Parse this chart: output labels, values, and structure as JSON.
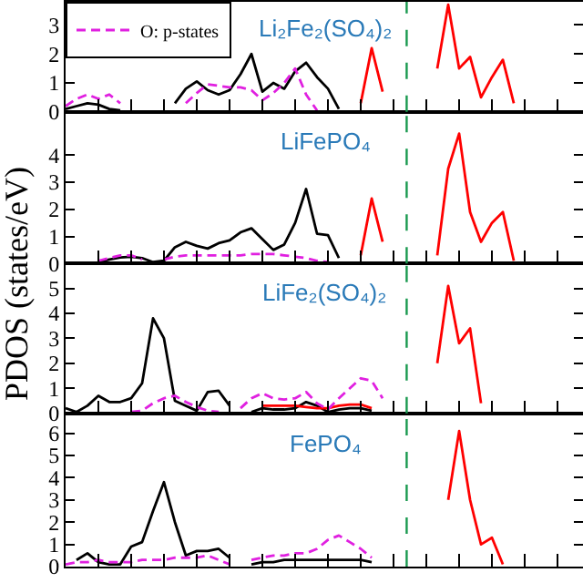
{
  "chart_data": [
    {
      "type": "line",
      "title": "Li₂Fe₂(SO₄)₂",
      "categories": [
        null,
        null,
        null,
        null,
        null,
        null,
        null,
        null,
        null,
        null,
        null,
        null,
        null,
        null,
        null,
        null,
        null,
        null,
        null,
        null,
        null,
        null,
        null,
        null,
        null,
        null,
        null,
        null,
        null,
        null,
        null,
        null,
        null,
        null,
        null,
        null,
        null,
        null,
        null,
        null,
        null,
        null,
        null,
        null,
        null,
        null,
        null,
        null
      ],
      "ylim": [
        0,
        3.8
      ],
      "yticks": [
        0,
        1,
        2,
        3
      ],
      "tick_labels": "y",
      "grid": false,
      "legend": "top left",
      "marker": "none",
      "series": [
        {
          "color": "#000000",
          "values": [
            0.1,
            0.2,
            0.3,
            0.25,
            0.1,
            0.05,
            null,
            null,
            null,
            null,
            0.3,
            0.8,
            1.05,
            0.75,
            0.6,
            0.75,
            1.3,
            2.0,
            0.7,
            1.0,
            0.8,
            1.4,
            1.7,
            1.2,
            0.8,
            0.1,
            null,
            null,
            null,
            null,
            null,
            null,
            null,
            null,
            null,
            null,
            null,
            null,
            null,
            null,
            null,
            null,
            null,
            null,
            null,
            null,
            null,
            null
          ]
        },
        {
          "color": "#ff0000",
          "values": [
            null,
            null,
            null,
            null,
            null,
            null,
            null,
            null,
            null,
            null,
            null,
            null,
            null,
            null,
            null,
            null,
            null,
            null,
            null,
            null,
            null,
            null,
            null,
            null,
            null,
            null,
            null,
            0.3,
            2.2,
            0.7,
            null,
            null,
            null,
            null,
            1.5,
            3.7,
            1.5,
            1.9,
            0.5,
            1.2,
            1.8,
            0.3,
            null,
            null,
            null,
            null,
            null,
            null
          ]
        },
        {
          "name": "O: p-states",
          "color": "#e020e0",
          "line_style": "dashed",
          "values": [
            0.2,
            0.45,
            0.6,
            0.45,
            0.6,
            0.3,
            null,
            null,
            null,
            null,
            null,
            0.3,
            0.65,
            0.95,
            0.9,
            0.85,
            0.85,
            0.75,
            0.4,
            0.65,
            1.0,
            1.5,
            0.6,
            0.05,
            null,
            null,
            null,
            null,
            null,
            null,
            null,
            null,
            null,
            null,
            null,
            null,
            null,
            null,
            null,
            null,
            null,
            null,
            null,
            null,
            null,
            null,
            null,
            null
          ]
        }
      ]
    },
    {
      "type": "line",
      "title": "LiFePO₄",
      "ylabel": "PDOS (states/eV)",
      "categories": [
        null,
        null,
        null,
        null,
        null,
        null,
        null,
        null,
        null,
        null,
        null,
        null,
        null,
        null,
        null,
        null,
        null,
        null,
        null,
        null,
        null,
        null,
        null,
        null,
        null,
        null,
        null,
        null,
        null,
        null,
        null,
        null,
        null,
        null,
        null,
        null,
        null,
        null,
        null,
        null,
        null,
        null,
        null,
        null,
        null,
        null,
        null,
        null
      ],
      "ylim": [
        0,
        5.6
      ],
      "yticks": [
        0,
        1,
        2,
        3,
        4
      ],
      "tick_labels": "y",
      "grid": false,
      "marker": "none",
      "series": [
        {
          "color": "#000000",
          "values": [
            null,
            null,
            null,
            0.05,
            0.15,
            0.22,
            0.25,
            0.2,
            0.05,
            0.1,
            0.6,
            0.8,
            0.65,
            0.55,
            0.75,
            0.85,
            1.15,
            1.3,
            0.9,
            0.5,
            0.7,
            1.5,
            2.75,
            1.1,
            1.05,
            0.2,
            null,
            null,
            null,
            null,
            null,
            null,
            null,
            null,
            null,
            null,
            null,
            null,
            null,
            null,
            null,
            null,
            null,
            null,
            null,
            null,
            null,
            null
          ]
        },
        {
          "color": "#ff0000",
          "values": [
            null,
            null,
            null,
            null,
            null,
            null,
            null,
            null,
            null,
            null,
            null,
            null,
            null,
            null,
            null,
            null,
            null,
            null,
            null,
            null,
            null,
            null,
            null,
            null,
            null,
            null,
            null,
            0.3,
            2.4,
            0.8,
            null,
            null,
            null,
            null,
            0.3,
            3.5,
            4.8,
            1.9,
            0.8,
            1.5,
            1.9,
            0.1,
            null,
            null,
            null,
            null,
            null,
            null
          ]
        },
        {
          "color": "#e020e0",
          "line_style": "dashed",
          "values": [
            null,
            null,
            null,
            0.1,
            0.2,
            0.3,
            0.3,
            0.15,
            null,
            0.15,
            0.25,
            0.3,
            0.3,
            0.3,
            0.3,
            0.3,
            0.3,
            0.35,
            0.35,
            0.35,
            0.3,
            0.25,
            0.2,
            0.1,
            0.05,
            null,
            null,
            null,
            null,
            null,
            null,
            null,
            null,
            null,
            null,
            null,
            null,
            null,
            null,
            null,
            null,
            null,
            null,
            null,
            null,
            null,
            null,
            null
          ]
        }
      ]
    },
    {
      "type": "line",
      "title": "LiFe₂(SO₄)₂",
      "categories": [
        null,
        null,
        null,
        null,
        null,
        null,
        null,
        null,
        null,
        null,
        null,
        null,
        null,
        null,
        null,
        null,
        null,
        null,
        null,
        null,
        null,
        null,
        null,
        null,
        null,
        null,
        null,
        null,
        null,
        null,
        null,
        null,
        null,
        null,
        null,
        null,
        null,
        null,
        null,
        null,
        null,
        null,
        null,
        null,
        null,
        null,
        null,
        null
      ],
      "ylim": [
        0,
        6
      ],
      "yticks": [
        0,
        1,
        2,
        3,
        4,
        5
      ],
      "tick_labels": "y",
      "grid": false,
      "marker": "none",
      "series": [
        {
          "color": "#000000",
          "values": [
            0.2,
            0.05,
            0.3,
            0.7,
            0.45,
            0.45,
            0.6,
            1.2,
            3.8,
            3.0,
            0.5,
            0.3,
            0.1,
            0.85,
            0.9,
            0.3,
            null,
            0.05,
            0.2,
            0.15,
            0.15,
            0.2,
            0.45,
            0.3,
            0.05,
            0.15,
            0.2,
            0.2,
            0.1,
            null,
            null,
            null,
            null,
            null,
            null,
            null,
            null,
            null,
            null,
            null,
            null,
            null,
            null,
            null,
            null,
            null,
            null,
            null
          ]
        },
        {
          "color": "#ff0000",
          "values": [
            null,
            null,
            null,
            null,
            null,
            null,
            null,
            null,
            null,
            null,
            null,
            null,
            null,
            null,
            null,
            null,
            null,
            null,
            0.3,
            0.3,
            0.3,
            0.3,
            0.25,
            0.2,
            0.2,
            0.3,
            0.35,
            0.35,
            0.2,
            null,
            null,
            null,
            null,
            null,
            2.0,
            5.1,
            2.8,
            3.4,
            0.4,
            null,
            null,
            null,
            null,
            null,
            null,
            null,
            null,
            null
          ]
        },
        {
          "color": "#e020e0",
          "line_style": "dashed",
          "values": [
            null,
            null,
            null,
            null,
            null,
            null,
            0.05,
            0.1,
            0.4,
            0.6,
            0.7,
            0.45,
            0.25,
            0.1,
            0.05,
            null,
            0.2,
            0.6,
            0.8,
            0.6,
            0.55,
            0.6,
            0.85,
            0.4,
            0.15,
            0.6,
            1.0,
            1.4,
            1.3,
            0.6,
            null,
            null,
            null,
            null,
            null,
            null,
            null,
            null,
            null,
            null,
            null,
            null,
            null,
            null,
            null,
            null,
            null,
            null
          ]
        }
      ]
    },
    {
      "type": "line",
      "title": "FePO₄",
      "categories": [
        null,
        null,
        null,
        null,
        null,
        null,
        null,
        null,
        null,
        null,
        null,
        null,
        null,
        null,
        null,
        null,
        null,
        null,
        null,
        null,
        null,
        null,
        null,
        null,
        null,
        null,
        null,
        null,
        null,
        null,
        null,
        null,
        null,
        null,
        null,
        null,
        null,
        null,
        null,
        null,
        null,
        null,
        null,
        null,
        null,
        null,
        null,
        null
      ],
      "ylim": [
        0,
        6.9
      ],
      "yticks": [
        0,
        1,
        2,
        3,
        4,
        5,
        6
      ],
      "tick_labels": "y",
      "grid": false,
      "marker": "none",
      "series": [
        {
          "color": "#000000",
          "values": [
            null,
            0.3,
            0.6,
            0.2,
            0.1,
            0.1,
            0.9,
            1.1,
            2.5,
            3.8,
            2.0,
            0.5,
            0.7,
            0.7,
            0.8,
            0.4,
            null,
            0.1,
            0.2,
            0.2,
            0.3,
            0.3,
            0.3,
            0.3,
            0.3,
            0.3,
            0.3,
            0.3,
            0.2,
            null,
            null,
            null,
            null,
            null,
            null,
            null,
            null,
            null,
            null,
            null,
            null,
            null,
            null,
            null,
            null,
            null,
            null,
            null
          ]
        },
        {
          "color": "#ff0000",
          "values": [
            null,
            null,
            null,
            null,
            null,
            null,
            null,
            null,
            null,
            null,
            null,
            null,
            null,
            null,
            null,
            null,
            null,
            null,
            null,
            null,
            null,
            null,
            null,
            null,
            null,
            null,
            null,
            null,
            null,
            null,
            null,
            null,
            null,
            null,
            null,
            3.0,
            6.1,
            3.0,
            1.0,
            1.3,
            0.1,
            null,
            null,
            null,
            null,
            null,
            null,
            null
          ]
        },
        {
          "color": "#e020e0",
          "line_style": "dashed",
          "values": [
            0.1,
            0.2,
            0.2,
            0.3,
            0.2,
            0.2,
            0.2,
            0.3,
            0.3,
            0.3,
            0.4,
            0.4,
            0.4,
            0.5,
            0.3,
            0.1,
            null,
            0.3,
            0.4,
            0.5,
            0.5,
            0.6,
            0.6,
            0.8,
            1.2,
            1.4,
            1.1,
            0.8,
            0.4,
            null,
            null,
            null,
            null,
            null,
            null,
            null,
            null,
            null,
            null,
            null,
            null,
            null,
            null,
            null,
            null,
            null,
            null,
            null
          ]
        }
      ]
    }
  ]
}
